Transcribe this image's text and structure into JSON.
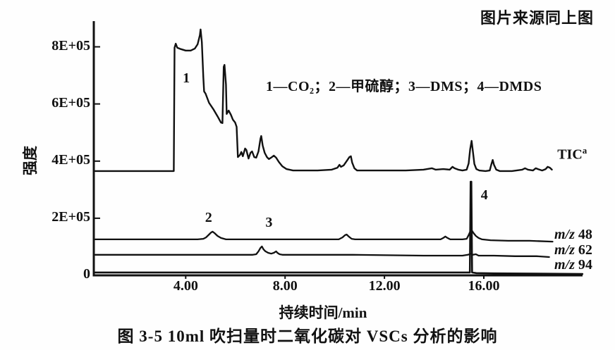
{
  "header": {
    "note": "图片来源同上图"
  },
  "caption": "图 3-5  10ml 吹扫量时二氧化碳对 VSCs 分析的影响",
  "chart_data": {
    "type": "line",
    "subtype": "chromatogram",
    "title": "",
    "xlabel": "持续时间/min",
    "ylabel": "强度",
    "legend": "1—CO₂；2—甲硫醇；3—DMS；4—DMDS",
    "grid": false,
    "ink_color": "#111111",
    "background_color": "#fefefe",
    "xlim": [
      0.3,
      21.0
    ],
    "ylim": [
      0,
      890000
    ],
    "x_ticks": [
      {
        "label": "4.00",
        "value": 4
      },
      {
        "label": "8.00",
        "value": 8
      },
      {
        "label": "12.00",
        "value": 12
      },
      {
        "label": "16.00",
        "value": 16
      }
    ],
    "y_ticks": [
      {
        "label": "8E+05",
        "value": 800000
      },
      {
        "label": "6E+05",
        "value": 600000
      },
      {
        "label": "4E+05",
        "value": 400000
      },
      {
        "label": "2E+05",
        "value": 200000
      },
      {
        "label": "0",
        "value": 0
      }
    ],
    "annotations": [
      {
        "label": "1",
        "t": 4.05,
        "intensity": 688000
      },
      {
        "label": "2",
        "t": 4.95,
        "intensity": 200000
      },
      {
        "label": "3",
        "t": 7.38,
        "intensity": 182000
      },
      {
        "label": "4",
        "t": 16.05,
        "intensity": 279000
      }
    ],
    "series": [
      {
        "id": "tic",
        "name": "TIC total ion chromatogram",
        "label": {
          "text": "TIC",
          "sup": "a"
        },
        "label_pos": {
          "t": 18.96,
          "intensity": 427000
        },
        "points": [
          [
            0.36,
            365000
          ],
          [
            3.52,
            365000
          ],
          [
            3.55,
            797000
          ],
          [
            3.6,
            811000
          ],
          [
            3.66,
            797000
          ],
          [
            3.8,
            792000
          ],
          [
            4.0,
            787000
          ],
          [
            4.2,
            787000
          ],
          [
            4.37,
            794000
          ],
          [
            4.48,
            809000
          ],
          [
            4.57,
            841000
          ],
          [
            4.6,
            861000
          ],
          [
            4.65,
            816000
          ],
          [
            4.71,
            693000
          ],
          [
            4.74,
            644000
          ],
          [
            4.8,
            636000
          ],
          [
            4.94,
            604000
          ],
          [
            5.11,
            582000
          ],
          [
            5.28,
            557000
          ],
          [
            5.42,
            535000
          ],
          [
            5.48,
            533000
          ],
          [
            5.53,
            730000
          ],
          [
            5.56,
            737000
          ],
          [
            5.62,
            668000
          ],
          [
            5.65,
            565000
          ],
          [
            5.73,
            577000
          ],
          [
            5.82,
            562000
          ],
          [
            5.9,
            545000
          ],
          [
            5.99,
            535000
          ],
          [
            6.05,
            520000
          ],
          [
            6.1,
            414000
          ],
          [
            6.19,
            422000
          ],
          [
            6.24,
            432000
          ],
          [
            6.3,
            417000
          ],
          [
            6.39,
            444000
          ],
          [
            6.44,
            439000
          ],
          [
            6.53,
            409000
          ],
          [
            6.61,
            429000
          ],
          [
            6.67,
            434000
          ],
          [
            6.76,
            414000
          ],
          [
            6.84,
            412000
          ],
          [
            6.93,
            434000
          ],
          [
            7.01,
            478000
          ],
          [
            7.04,
            488000
          ],
          [
            7.1,
            454000
          ],
          [
            7.18,
            429000
          ],
          [
            7.27,
            414000
          ],
          [
            7.35,
            407000
          ],
          [
            7.47,
            414000
          ],
          [
            7.55,
            419000
          ],
          [
            7.64,
            412000
          ],
          [
            7.75,
            397000
          ],
          [
            7.89,
            382000
          ],
          [
            8.06,
            372000
          ],
          [
            8.32,
            367000
          ],
          [
            8.74,
            367000
          ],
          [
            9.31,
            367000
          ],
          [
            9.88,
            370000
          ],
          [
            10.11,
            377000
          ],
          [
            10.19,
            387000
          ],
          [
            10.25,
            380000
          ],
          [
            10.36,
            385000
          ],
          [
            10.48,
            400000
          ],
          [
            10.59,
            414000
          ],
          [
            10.65,
            417000
          ],
          [
            10.7,
            395000
          ],
          [
            10.79,
            375000
          ],
          [
            10.9,
            367000
          ],
          [
            11.44,
            367000
          ],
          [
            12.15,
            367000
          ],
          [
            12.86,
            367000
          ],
          [
            13.57,
            370000
          ],
          [
            13.91,
            375000
          ],
          [
            14.06,
            370000
          ],
          [
            14.37,
            372000
          ],
          [
            14.63,
            370000
          ],
          [
            14.74,
            380000
          ],
          [
            14.82,
            375000
          ],
          [
            14.97,
            370000
          ],
          [
            15.14,
            367000
          ],
          [
            15.31,
            370000
          ],
          [
            15.39,
            392000
          ],
          [
            15.45,
            441000
          ],
          [
            15.51,
            471000
          ],
          [
            15.56,
            434000
          ],
          [
            15.62,
            390000
          ],
          [
            15.7,
            372000
          ],
          [
            15.82,
            367000
          ],
          [
            16.07,
            365000
          ],
          [
            16.24,
            367000
          ],
          [
            16.3,
            387000
          ],
          [
            16.36,
            404000
          ],
          [
            16.41,
            387000
          ],
          [
            16.5,
            370000
          ],
          [
            16.64,
            365000
          ],
          [
            17.13,
            365000
          ],
          [
            17.55,
            370000
          ],
          [
            17.66,
            375000
          ],
          [
            17.78,
            370000
          ],
          [
            17.98,
            367000
          ],
          [
            18.09,
            375000
          ],
          [
            18.18,
            372000
          ],
          [
            18.35,
            367000
          ],
          [
            18.49,
            372000
          ],
          [
            18.57,
            380000
          ],
          [
            18.66,
            377000
          ],
          [
            18.74,
            370000
          ]
        ]
      },
      {
        "id": "mz48",
        "name": "m/z 48 methanethiol trace",
        "label": {
          "prefix": "m/z",
          "value": "48"
        },
        "label_pos": {
          "t": 18.84,
          "intensity": 140000
        },
        "points": [
          [
            0.36,
            126000
          ],
          [
            4.48,
            126000
          ],
          [
            4.71,
            128000
          ],
          [
            4.82,
            133000
          ],
          [
            4.94,
            143000
          ],
          [
            5.02,
            150000
          ],
          [
            5.08,
            153000
          ],
          [
            5.16,
            148000
          ],
          [
            5.28,
            138000
          ],
          [
            5.42,
            131000
          ],
          [
            5.62,
            126000
          ],
          [
            7.89,
            126000
          ],
          [
            10.16,
            126000
          ],
          [
            10.31,
            133000
          ],
          [
            10.42,
            141000
          ],
          [
            10.48,
            143000
          ],
          [
            10.56,
            136000
          ],
          [
            10.68,
            128000
          ],
          [
            10.82,
            126000
          ],
          [
            12.44,
            126000
          ],
          [
            14.26,
            126000
          ],
          [
            14.37,
            131000
          ],
          [
            14.45,
            136000
          ],
          [
            14.54,
            131000
          ],
          [
            14.65,
            126000
          ],
          [
            15.14,
            126000
          ],
          [
            15.31,
            128000
          ],
          [
            15.39,
            141000
          ],
          [
            15.45,
            153000
          ],
          [
            15.51,
            158000
          ],
          [
            15.59,
            148000
          ],
          [
            15.68,
            138000
          ],
          [
            15.79,
            131000
          ],
          [
            15.93,
            126000
          ],
          [
            16.27,
            123000
          ],
          [
            16.98,
            121000
          ],
          [
            17.84,
            121000
          ],
          [
            18.77,
            118000
          ]
        ]
      },
      {
        "id": "mz62",
        "name": "m/z 62 DMS trace",
        "label": {
          "prefix": "m/z",
          "value": "62"
        },
        "label_pos": {
          "t": 18.84,
          "intensity": 86000
        },
        "points": [
          [
            0.36,
            72000
          ],
          [
            6.7,
            72000
          ],
          [
            6.84,
            74000
          ],
          [
            6.93,
            84000
          ],
          [
            7.01,
            96000
          ],
          [
            7.07,
            101000
          ],
          [
            7.13,
            91000
          ],
          [
            7.21,
            84000
          ],
          [
            7.32,
            79000
          ],
          [
            7.44,
            76000
          ],
          [
            7.55,
            79000
          ],
          [
            7.64,
            84000
          ],
          [
            7.69,
            79000
          ],
          [
            7.78,
            74000
          ],
          [
            7.89,
            72000
          ],
          [
            10.73,
            72000
          ],
          [
            13.57,
            69000
          ],
          [
            15.14,
            69000
          ],
          [
            15.36,
            72000
          ],
          [
            15.48,
            76000
          ],
          [
            15.56,
            72000
          ],
          [
            15.68,
            74000
          ],
          [
            15.79,
            69000
          ],
          [
            16.41,
            69000
          ],
          [
            17.26,
            67000
          ],
          [
            18.12,
            67000
          ],
          [
            18.63,
            64000
          ]
        ]
      },
      {
        "id": "mz94",
        "name": "m/z 94 DMDS trace",
        "label": {
          "prefix": "m/z",
          "value": "94"
        },
        "label_pos": {
          "t": 18.84,
          "intensity": 35000
        },
        "points": [
          [
            0.36,
            10000
          ],
          [
            7.89,
            10000
          ],
          [
            13.57,
            10000
          ],
          [
            15.28,
            10000
          ],
          [
            15.44,
            10000
          ],
          [
            15.47,
            328000
          ],
          [
            15.5,
            328000
          ],
          [
            15.53,
            10000
          ],
          [
            15.7,
            8000
          ],
          [
            16.41,
            7000
          ],
          [
            19.97,
            5000
          ]
        ]
      }
    ]
  }
}
